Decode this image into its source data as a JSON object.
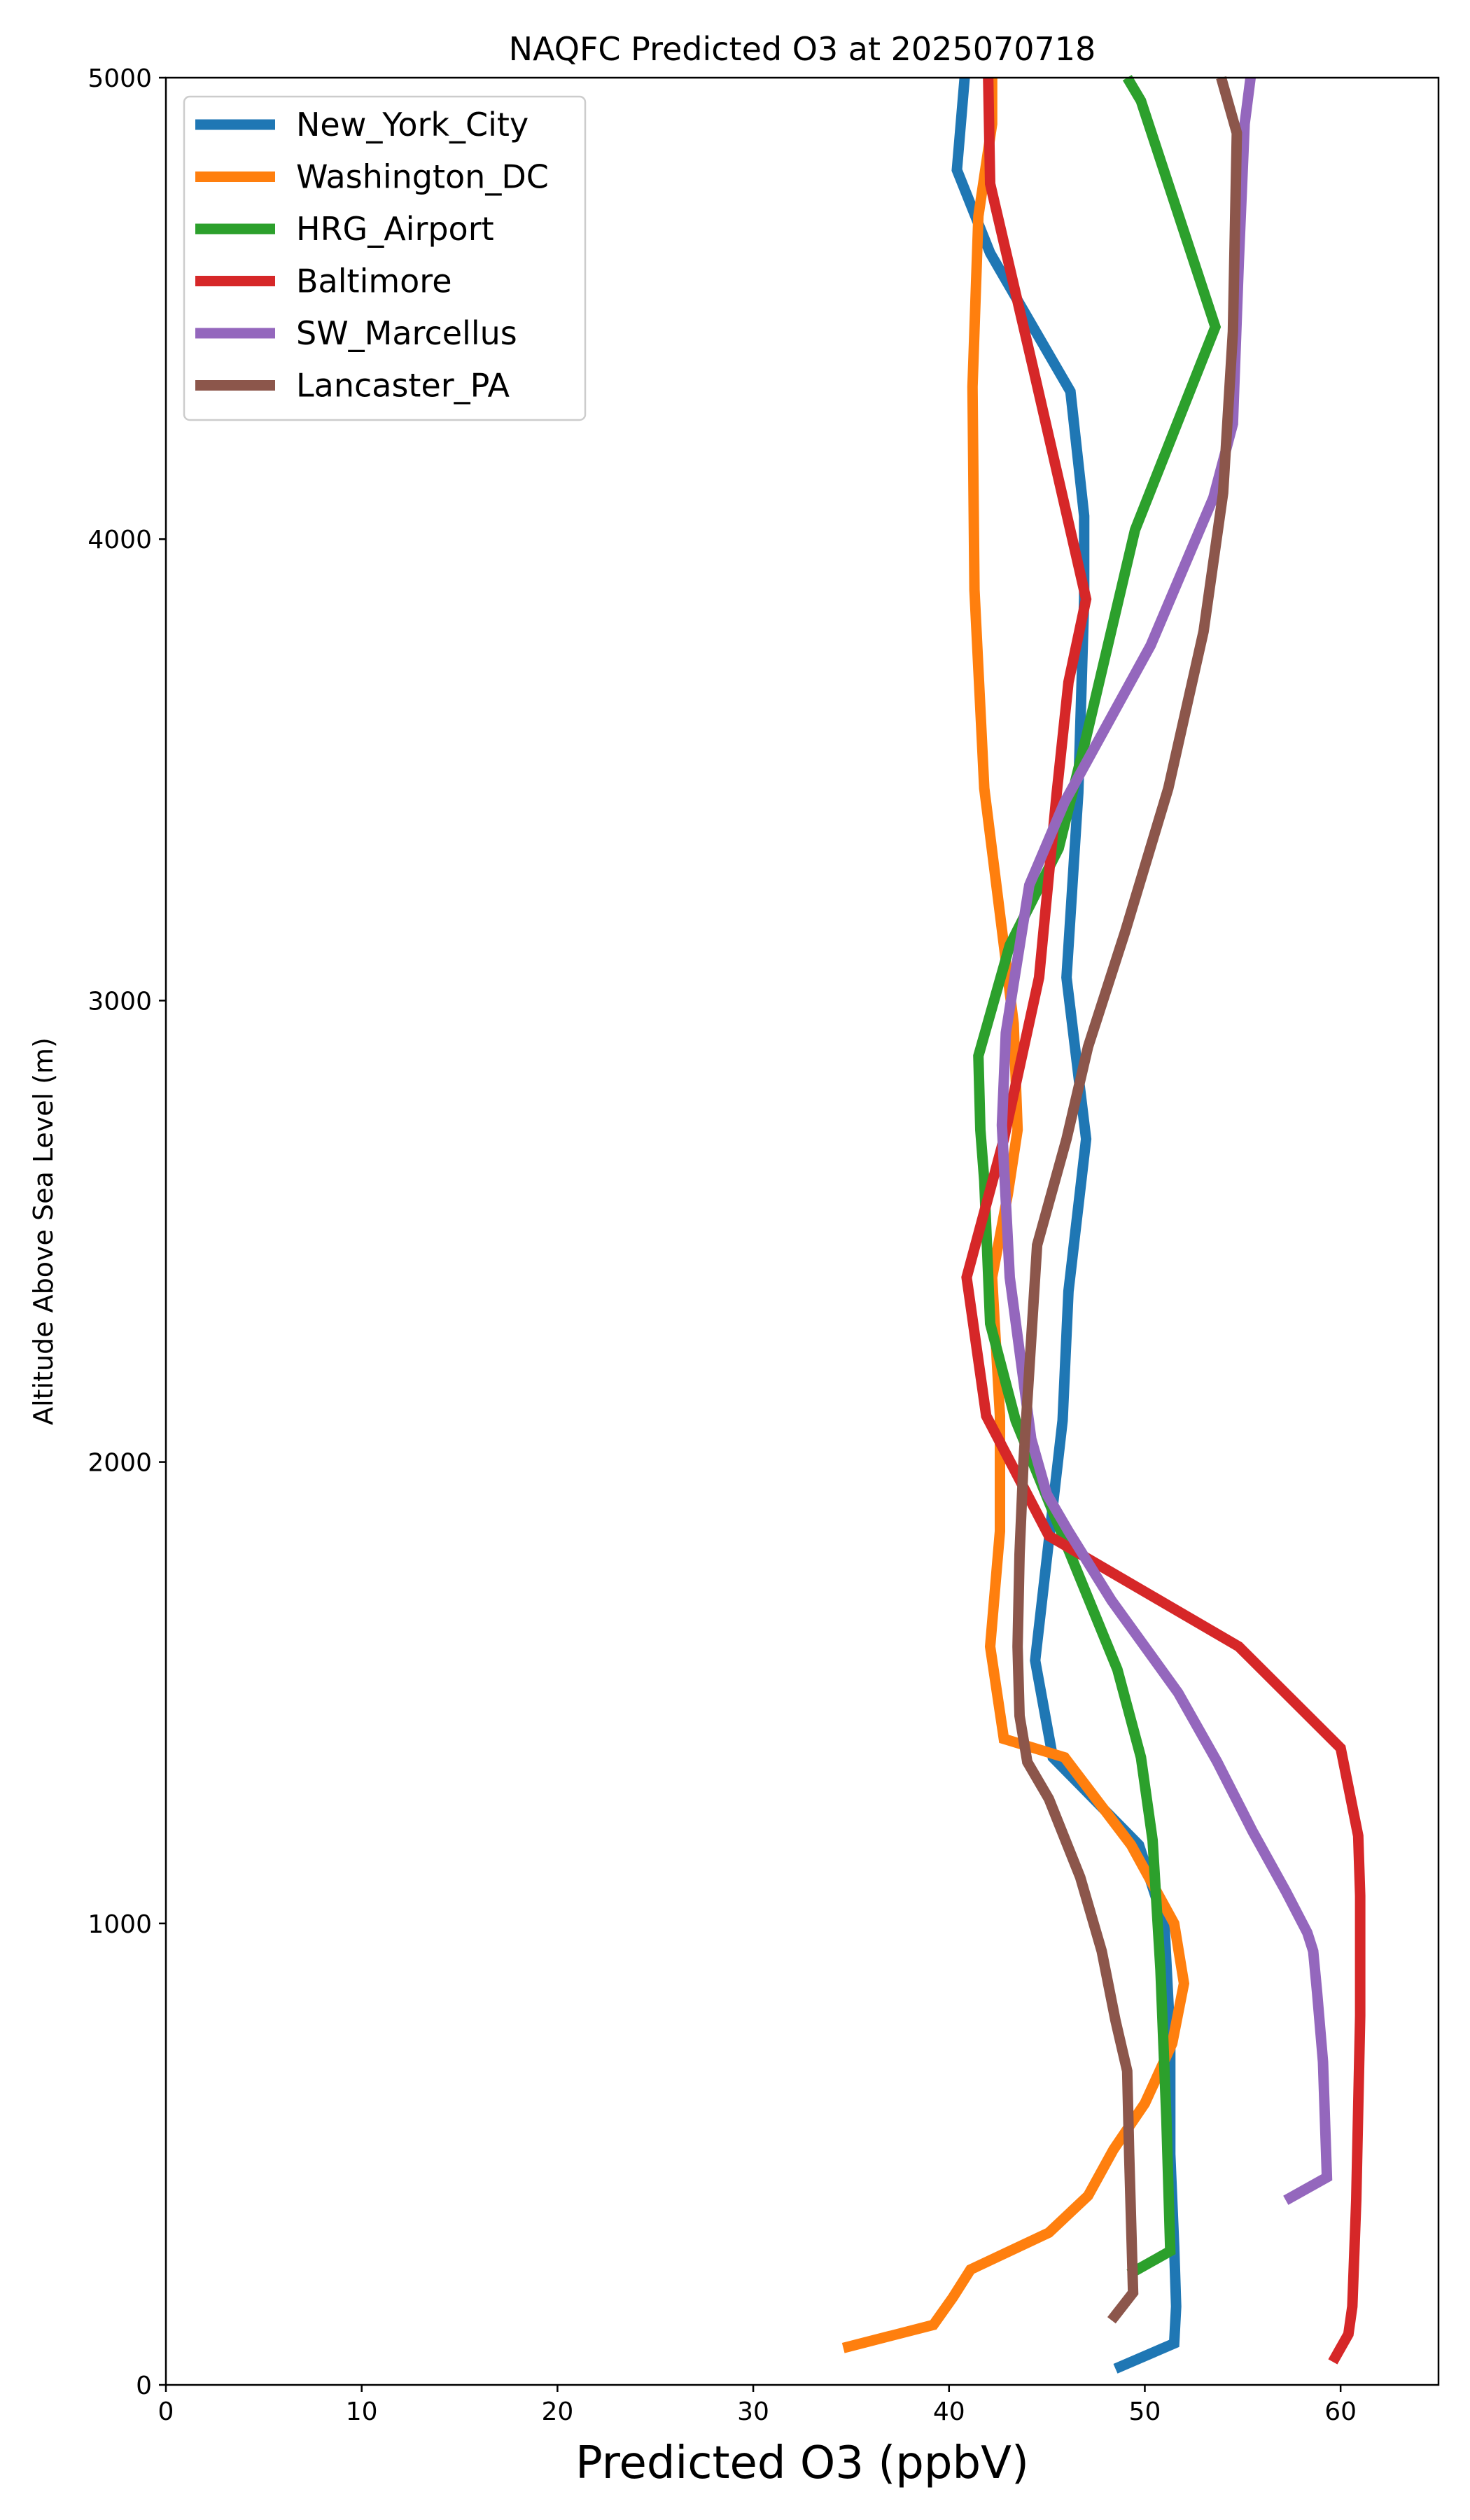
{
  "chart_data": {
    "type": "line",
    "title": "NAQFC Predicted O3 at 2025070718",
    "xlabel": "Predicted O3 (ppbV)",
    "ylabel": "Altitude Above Sea Level (m)",
    "xlim": [
      0,
      65
    ],
    "ylim": [
      0,
      5000
    ],
    "x_ticks": [
      "0",
      "10",
      "20",
      "30",
      "40",
      "50",
      "60"
    ],
    "y_ticks": [
      "0",
      "1000",
      "2000",
      "3000",
      "4000",
      "5000"
    ],
    "grid": false,
    "legend_position": "top-left",
    "series": [
      {
        "name": "New_York_City",
        "color": "#1f77b4",
        "x": [
          48.5,
          51.5,
          51.6,
          51.5,
          51.3,
          51.3,
          51.0,
          49.7,
          45.3,
          44.4,
          45.8,
          46.1,
          47.0,
          46.0,
          46.6,
          46.9,
          46.9,
          46.2,
          42.1,
          40.4,
          40.8
        ],
        "y": [
          35,
          90,
          170,
          300,
          500,
          750,
          1000,
          1170,
          1360,
          1570,
          2090,
          2370,
          2700,
          3050,
          3450,
          3870,
          4050,
          4320,
          4620,
          4800,
          5000
        ]
      },
      {
        "name": "Washington_DC",
        "color": "#ff7f0e",
        "x": [
          34.6,
          39.2,
          40.2,
          41.1,
          45.1,
          47.1,
          48.4,
          50.0,
          51.4,
          52.0,
          51.5,
          49.3,
          45.9,
          42.8,
          42.1,
          42.6,
          42.6,
          42.2,
          43.0,
          43.5,
          43.3,
          41.8,
          41.3,
          41.2,
          41.5,
          42.2,
          42.2
        ],
        "y": [
          80,
          130,
          190,
          250,
          330,
          410,
          510,
          610,
          740,
          870,
          1000,
          1170,
          1360,
          1400,
          1600,
          1850,
          2100,
          2400,
          2580,
          2720,
          2950,
          3460,
          3890,
          4330,
          4700,
          4900,
          5000
        ]
      },
      {
        "name": "HRG_Airport",
        "color": "#2ca02c",
        "x": [
          49.2,
          51.3,
          51.1,
          50.8,
          50.4,
          49.8,
          48.6,
          46.0,
          43.4,
          42.1,
          41.8,
          41.6,
          41.5,
          43.1,
          45.6,
          47.0,
          49.5,
          53.6,
          49.8,
          49.1
        ],
        "y": [
          240,
          290,
          580,
          900,
          1180,
          1360,
          1550,
          1820,
          2090,
          2300,
          2610,
          2720,
          2880,
          3120,
          3330,
          3570,
          4020,
          4460,
          4950,
          5000
        ]
      },
      {
        "name": "Baltimore",
        "color": "#d62728",
        "x": [
          59.6,
          60.4,
          60.6,
          60.8,
          61.0,
          61.0,
          60.9,
          60.0,
          54.8,
          45.1,
          41.9,
          40.9,
          42.8,
          44.6,
          45.5,
          46.1,
          47.0,
          44.3,
          42.1,
          42.0
        ],
        "y": [
          50,
          110,
          170,
          400,
          800,
          1060,
          1190,
          1380,
          1600,
          1840,
          2100,
          2400,
          2700,
          3050,
          3450,
          3690,
          3870,
          4370,
          4770,
          5000
        ]
      },
      {
        "name": "SW_Marcellus",
        "color": "#9467bd",
        "x": [
          57.2,
          59.3,
          59.1,
          58.8,
          58.6,
          58.3,
          57.2,
          55.5,
          53.7,
          51.7,
          48.3,
          46.1,
          45.0,
          44.2,
          43.1,
          42.7,
          42.9,
          44.1,
          45.9,
          50.3,
          53.5,
          54.5,
          54.8,
          55.1,
          55.4
        ],
        "y": [
          400,
          450,
          700,
          850,
          940,
          980,
          1070,
          1200,
          1350,
          1500,
          1700,
          1850,
          1930,
          2050,
          2400,
          2730,
          2930,
          3250,
          3430,
          3770,
          4090,
          4250,
          4600,
          4900,
          5000
        ]
      },
      {
        "name": "Lancaster_PA",
        "color": "#8c564b",
        "x": [
          48.3,
          49.4,
          49.2,
          49.1,
          48.5,
          47.8,
          46.7,
          45.1,
          44.0,
          43.6,
          43.5,
          43.6,
          43.8,
          44.5,
          46.0,
          47.1,
          49.0,
          51.2,
          53.0,
          54.0,
          54.5,
          54.7,
          53.9
        ],
        "y": [
          140,
          200,
          500,
          680,
          790,
          940,
          1100,
          1270,
          1350,
          1450,
          1600,
          1800,
          2000,
          2470,
          2700,
          2900,
          3150,
          3460,
          3800,
          4100,
          4450,
          4880,
          5000
        ]
      }
    ]
  }
}
